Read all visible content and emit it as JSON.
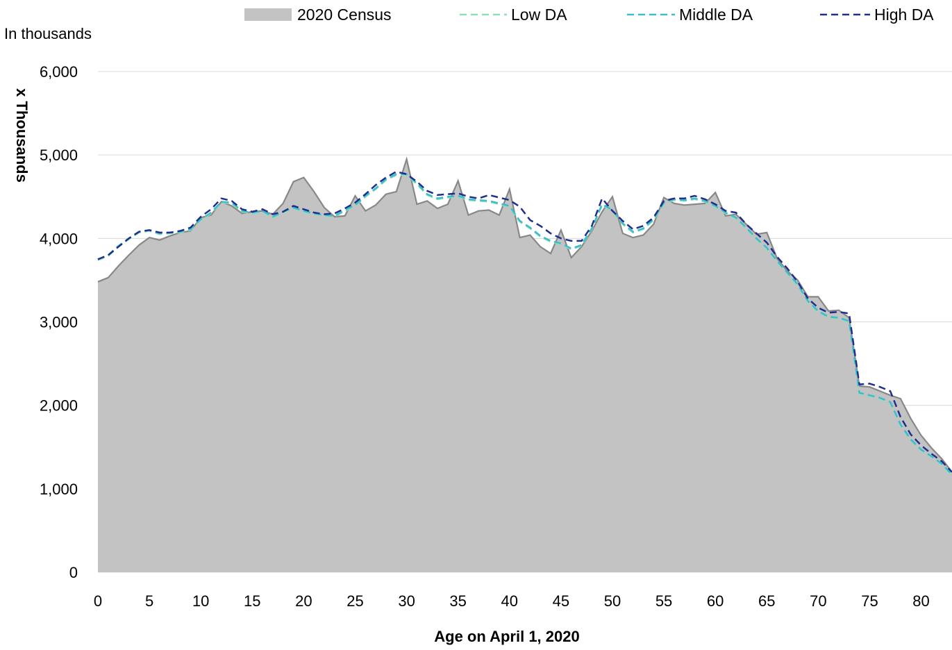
{
  "chart_data": {
    "type": "area",
    "title": "",
    "unit_note": "In thousands",
    "xlabel": "Age on April 1, 2020",
    "ylabel": "x Thousands",
    "xlim": [
      0,
      83
    ],
    "ylim": [
      0,
      6000
    ],
    "xticks": [
      0,
      5,
      10,
      15,
      20,
      25,
      30,
      35,
      40,
      45,
      50,
      55,
      60,
      65,
      70,
      75,
      80
    ],
    "yticks": [
      0,
      1000,
      2000,
      3000,
      4000,
      5000,
      6000
    ],
    "ytick_labels": [
      "0",
      "1,000",
      "2,000",
      "3,000",
      "4,000",
      "5,000",
      "6,000"
    ],
    "grid": "horizontal",
    "legend_position": "top",
    "x": [
      0,
      1,
      2,
      3,
      4,
      5,
      6,
      7,
      8,
      9,
      10,
      11,
      12,
      13,
      14,
      15,
      16,
      17,
      18,
      19,
      20,
      21,
      22,
      23,
      24,
      25,
      26,
      27,
      28,
      29,
      30,
      31,
      32,
      33,
      34,
      35,
      36,
      37,
      38,
      39,
      40,
      41,
      42,
      43,
      44,
      45,
      46,
      47,
      48,
      49,
      50,
      51,
      52,
      53,
      54,
      55,
      56,
      57,
      58,
      59,
      60,
      61,
      62,
      63,
      64,
      65,
      66,
      67,
      68,
      69,
      70,
      71,
      72,
      73,
      74,
      75,
      76,
      77,
      78,
      79,
      80,
      81,
      82,
      83
    ],
    "series": [
      {
        "name": "2020 Census",
        "style": "area",
        "color": "#c3c3c3",
        "line_color": "#888888",
        "values": [
          3480,
          3530,
          3670,
          3800,
          3920,
          4010,
          3980,
          4030,
          4070,
          4090,
          4250,
          4280,
          4440,
          4390,
          4300,
          4320,
          4330,
          4290,
          4420,
          4680,
          4730,
          4560,
          4370,
          4260,
          4270,
          4510,
          4330,
          4400,
          4530,
          4560,
          4950,
          4410,
          4450,
          4360,
          4410,
          4690,
          4280,
          4330,
          4340,
          4280,
          4590,
          4010,
          4040,
          3900,
          3820,
          4100,
          3770,
          3900,
          4090,
          4320,
          4500,
          4060,
          4010,
          4040,
          4170,
          4490,
          4420,
          4400,
          4410,
          4420,
          4550,
          4270,
          4290,
          4170,
          4050,
          4070,
          3760,
          3610,
          3500,
          3300,
          3300,
          3130,
          3140,
          3050,
          2230,
          2220,
          2170,
          2120,
          2080,
          1840,
          1640,
          1490,
          1360,
          1200
        ]
      },
      {
        "name": "Low DA",
        "style": "dashed",
        "color": "#8ce0b4",
        "values": [
          3740,
          3790,
          3900,
          3990,
          4070,
          4090,
          4050,
          4060,
          4070,
          4100,
          4220,
          4300,
          4430,
          4420,
          4320,
          4300,
          4320,
          4250,
          4310,
          4360,
          4320,
          4290,
          4270,
          4260,
          4330,
          4390,
          4500,
          4590,
          4700,
          4760,
          4760,
          4650,
          4520,
          4470,
          4490,
          4500,
          4460,
          4450,
          4440,
          4410,
          4380,
          4200,
          4120,
          4020,
          3960,
          3930,
          3870,
          3910,
          4110,
          4400,
          4330,
          4170,
          4070,
          4110,
          4220,
          4420,
          4460,
          4450,
          4470,
          4440,
          4380,
          4300,
          4240,
          4120,
          3990,
          3880,
          3720,
          3580,
          3440,
          3240,
          3120,
          3050,
          3040,
          3000,
          2140,
          2110,
          2080,
          2030,
          1760,
          1580,
          1460,
          1380,
          1290,
          1160
        ]
      },
      {
        "name": "Middle DA",
        "style": "dashed",
        "color": "#3cbccc",
        "values": [
          3750,
          3800,
          3910,
          4000,
          4080,
          4100,
          4060,
          4070,
          4080,
          4110,
          4230,
          4310,
          4440,
          4430,
          4330,
          4310,
          4330,
          4260,
          4320,
          4370,
          4330,
          4300,
          4280,
          4270,
          4340,
          4400,
          4510,
          4600,
          4710,
          4770,
          4770,
          4660,
          4530,
          4480,
          4500,
          4510,
          4470,
          4460,
          4450,
          4420,
          4390,
          4210,
          4130,
          4030,
          3970,
          3940,
          3880,
          3920,
          4120,
          4410,
          4340,
          4180,
          4080,
          4120,
          4230,
          4430,
          4470,
          4460,
          4480,
          4450,
          4390,
          4310,
          4250,
          4130,
          4000,
          3890,
          3730,
          3590,
          3450,
          3250,
          3130,
          3060,
          3050,
          3010,
          2150,
          2120,
          2090,
          2040,
          1770,
          1590,
          1470,
          1390,
          1300,
          1170
        ]
      },
      {
        "name": "High DA",
        "style": "dashed",
        "color": "#1f2f8e",
        "values": [
          3750,
          3800,
          3900,
          4000,
          4080,
          4100,
          4070,
          4070,
          4090,
          4130,
          4260,
          4350,
          4480,
          4450,
          4350,
          4320,
          4350,
          4290,
          4320,
          4390,
          4350,
          4310,
          4290,
          4300,
          4360,
          4430,
          4530,
          4640,
          4730,
          4800,
          4770,
          4680,
          4570,
          4520,
          4530,
          4540,
          4500,
          4480,
          4520,
          4490,
          4460,
          4380,
          4220,
          4150,
          4060,
          4000,
          3970,
          3970,
          4150,
          4480,
          4330,
          4210,
          4110,
          4150,
          4250,
          4450,
          4480,
          4480,
          4510,
          4470,
          4410,
          4330,
          4310,
          4170,
          4060,
          3950,
          3780,
          3640,
          3480,
          3280,
          3170,
          3110,
          3120,
          3100,
          2250,
          2260,
          2220,
          2170,
          1860,
          1650,
          1520,
          1420,
          1330,
          1200
        ]
      }
    ]
  }
}
